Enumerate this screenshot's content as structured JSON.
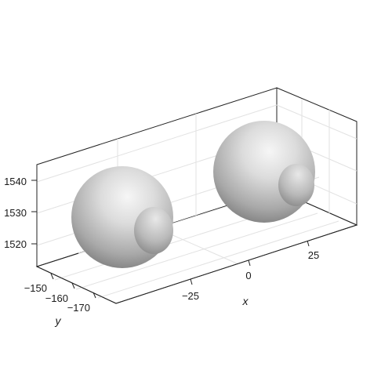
{
  "chart_data": {
    "type": "surface3d",
    "title": "",
    "xlabel": "x",
    "ylabel": "y",
    "zlabel": "",
    "ticks": {
      "x": [
        "−25",
        "0",
        "25"
      ],
      "y": [
        "−150",
        "−160",
        "−170"
      ],
      "z": [
        "1520",
        "1530",
        "1540"
      ]
    },
    "grid": true,
    "colormap": "grayscale",
    "objects": [
      {
        "name": "",
        "x": -40,
        "y": -162,
        "z": 1528,
        "radius": 16
      },
      {
        "name": "",
        "x": 38,
        "y": -158,
        "z": 1536,
        "radius": 17
      }
    ]
  }
}
